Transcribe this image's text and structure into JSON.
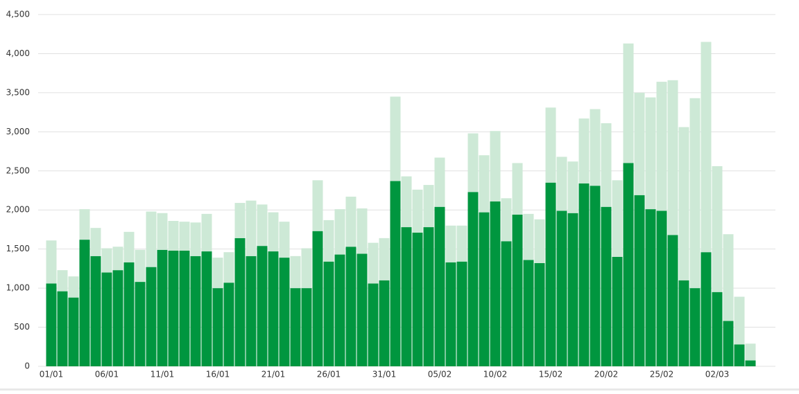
{
  "chart_data": {
    "type": "stacked-bar",
    "categories": [
      "01/01",
      null,
      null,
      null,
      null,
      "06/01",
      null,
      null,
      null,
      null,
      "11/01",
      null,
      null,
      null,
      null,
      "16/01",
      null,
      null,
      null,
      null,
      "21/01",
      null,
      null,
      null,
      null,
      "26/01",
      null,
      null,
      null,
      null,
      "31/01",
      null,
      null,
      null,
      null,
      "05/02",
      null,
      null,
      null,
      null,
      "10/02",
      null,
      null,
      null,
      null,
      "15/02",
      null,
      null,
      null,
      null,
      "20/02",
      null,
      null,
      null,
      null,
      "25/02",
      null,
      null,
      null,
      null,
      "02/03",
      null,
      null,
      null
    ],
    "series": [
      {
        "color": "#00963f",
        "values": [
          1060,
          960,
          880,
          1620,
          1410,
          1200,
          1230,
          1330,
          1080,
          1270,
          1490,
          1480,
          1480,
          1410,
          1470,
          1000,
          1070,
          1640,
          1410,
          1540,
          1470,
          1390,
          1000,
          1000,
          1730,
          1340,
          1430,
          1530,
          1440,
          1060,
          1100,
          2370,
          1780,
          1710,
          1780,
          2040,
          1330,
          1340,
          2230,
          1970,
          2110,
          1600,
          1940,
          1360,
          1320,
          2350,
          1990,
          1960,
          2340,
          2310,
          2040,
          1400,
          2600,
          2190,
          2010,
          1990,
          1680,
          1100,
          1000,
          1460,
          950,
          580,
          280,
          75
        ]
      },
      {
        "color": "#cde9d6",
        "values": [
          550,
          270,
          270,
          390,
          360,
          310,
          300,
          390,
          410,
          710,
          470,
          380,
          370,
          430,
          480,
          390,
          390,
          450,
          710,
          530,
          500,
          460,
          410,
          510,
          650,
          530,
          580,
          640,
          580,
          520,
          540,
          1080,
          650,
          550,
          540,
          630,
          470,
          460,
          750,
          730,
          900,
          550,
          660,
          590,
          560,
          960,
          690,
          660,
          830,
          980,
          1070,
          980,
          1530,
          1310,
          1430,
          1650,
          1980,
          1960,
          2430,
          2690,
          1610,
          1110,
          610,
          215
        ]
      }
    ],
    "ylim": [
      0,
      4500
    ],
    "yticks": [
      0,
      500,
      {
        "value": 1000,
        "label": "1,000"
      },
      {
        "value": 1500,
        "label": "1,500"
      },
      {
        "value": 2000,
        "label": "2,000"
      },
      {
        "value": 2500,
        "label": "2,500"
      },
      {
        "value": 3000,
        "label": "3,000"
      },
      {
        "value": 3500,
        "label": "3,500"
      },
      {
        "value": 4000,
        "label": "4,000"
      },
      {
        "value": 4500,
        "label": "4,500"
      }
    ],
    "grid": true
  }
}
